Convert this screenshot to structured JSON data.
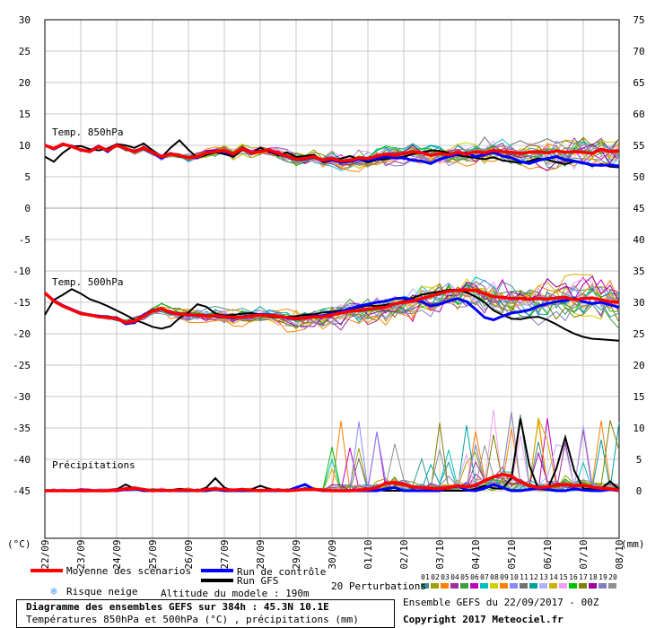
{
  "chart_data": {
    "type": "line",
    "title": "Diagramme des ensembles GEFS sur 384h : 45.3N 10.1E",
    "subtitle": "Températures 850hPa et 500hPa (°C) , précipitations (mm)",
    "left_axis": {
      "label": "(°C)",
      "range": [
        -45,
        30
      ],
      "ticks": [
        30,
        25,
        20,
        15,
        10,
        5,
        0,
        -5,
        -10,
        -15,
        -20,
        -25,
        -30,
        -35,
        -40,
        -45
      ]
    },
    "right_axis": {
      "label": "(mm)",
      "range": [
        0,
        75
      ],
      "ticks": [
        75,
        70,
        65,
        60,
        55,
        50,
        45,
        40,
        35,
        30,
        25,
        20,
        15,
        10,
        5,
        0
      ]
    },
    "x_ticks": [
      "22/09",
      "23/09",
      "24/09",
      "25/09",
      "26/09",
      "27/09",
      "28/09",
      "29/09",
      "30/09",
      "01/10",
      "02/10",
      "03/10",
      "04/10",
      "05/10",
      "06/10",
      "07/10",
      "08/10"
    ],
    "grid": true,
    "panels": [
      {
        "name": "Temp. 850hPa",
        "mean": [
          10,
          9.5,
          10.2,
          9.8,
          9.3,
          9.0,
          9.8,
          9.2,
          10.0,
          9.5,
          9.0,
          9.6,
          8.9,
          8.2,
          8.6,
          8.4,
          8.0,
          8.2,
          8.8,
          9.0,
          9.2,
          8.6,
          9.5,
          8.8,
          9.0,
          9.3,
          8.7,
          8.3,
          7.8,
          7.9,
          8.2,
          7.6,
          7.9,
          7.5,
          7.6,
          8.0,
          7.9,
          8.3,
          8.6,
          8.4,
          8.7,
          9.0,
          8.8,
          8.4,
          8.7,
          8.5,
          8.9,
          8.6,
          9.0,
          8.8,
          9.2,
          9.0,
          8.9,
          8.7,
          8.9,
          9.0,
          8.8,
          9.1,
          8.9,
          9.0,
          8.9,
          8.7,
          9.4,
          9.0,
          9.1
        ],
        "control": [
          10,
          9.4,
          10.1,
          9.9,
          9.2,
          9.1,
          9.9,
          9.0,
          10.1,
          9.4,
          9.1,
          9.5,
          8.8,
          8.0,
          8.7,
          8.3,
          8.1,
          8.0,
          8.9,
          9.1,
          9.0,
          8.5,
          9.6,
          8.7,
          9.1,
          9.2,
          8.6,
          8.2,
          7.7,
          7.8,
          8.1,
          7.5,
          7.7,
          7.3,
          7.4,
          7.8,
          7.6,
          7.9,
          8.2,
          8.0,
          8.0,
          7.6,
          7.5,
          7.1,
          7.8,
          8.2,
          8.6,
          8.8,
          8.2,
          8.5,
          8.9,
          8.3,
          8.0,
          7.4,
          7.1,
          7.6,
          7.9,
          8.2,
          7.7,
          7.5,
          7.2,
          6.9,
          6.8,
          6.9,
          6.7
        ],
        "gfs": [
          8.2,
          7.4,
          8.8,
          9.8,
          9.9,
          9.4,
          9.2,
          9.5,
          10.2,
          10.0,
          9.6,
          10.3,
          9.2,
          8.1,
          9.6,
          10.8,
          9.3,
          8.0,
          8.5,
          8.9,
          8.6,
          8.2,
          9.3,
          8.7,
          9.6,
          9.0,
          8.4,
          8.9,
          8.1,
          8.3,
          8.5,
          7.3,
          7.6,
          7.9,
          8.3,
          7.8,
          7.3,
          7.7,
          7.8,
          8.0,
          8.2,
          8.6,
          8.9,
          9.2,
          9.1,
          8.8,
          8.4,
          8.2,
          8.0,
          7.8,
          8.1,
          7.6,
          7.4,
          7.2,
          7.5,
          7.9,
          7.7,
          7.3,
          7.0,
          7.4,
          7.2,
          6.7,
          7.0,
          6.6,
          6.5
        ]
      },
      {
        "name": "Temp. 500hPa",
        "mean": [
          -13.5,
          -14.8,
          -15.6,
          -16.2,
          -16.8,
          -17.0,
          -17.3,
          -17.4,
          -17.6,
          -18.2,
          -18.0,
          -17.2,
          -16.4,
          -16.0,
          -16.6,
          -16.9,
          -17.0,
          -17.0,
          -17.2,
          -17.1,
          -17.3,
          -17.4,
          -17.4,
          -17.2,
          -17.0,
          -17.1,
          -17.2,
          -17.4,
          -17.6,
          -17.5,
          -17.3,
          -17.3,
          -17.0,
          -16.7,
          -16.4,
          -16.3,
          -16.1,
          -15.9,
          -15.8,
          -15.2,
          -15.0,
          -14.8,
          -14.4,
          -14.0,
          -13.6,
          -13.2,
          -13.1,
          -13.0,
          -13.1,
          -13.6,
          -14.1,
          -14.2,
          -14.4,
          -14.4,
          -14.5,
          -14.4,
          -14.5,
          -14.3,
          -14.2,
          -14.6,
          -14.4,
          -14.3,
          -14.6,
          -14.9,
          -15.0
        ],
        "control": [
          -13.5,
          -14.7,
          -15.5,
          -16.1,
          -16.7,
          -17.0,
          -17.2,
          -17.3,
          -17.5,
          -18.4,
          -18.2,
          -17.0,
          -16.3,
          -16.0,
          -16.7,
          -16.8,
          -17.1,
          -17.0,
          -17.1,
          -17.2,
          -17.4,
          -17.5,
          -17.3,
          -17.1,
          -16.9,
          -17.0,
          -17.2,
          -17.5,
          -17.7,
          -17.4,
          -17.2,
          -17.1,
          -16.8,
          -16.5,
          -16.0,
          -15.6,
          -15.3,
          -15.0,
          -14.8,
          -14.4,
          -14.3,
          -14.6,
          -14.9,
          -15.6,
          -15.3,
          -14.8,
          -14.4,
          -14.9,
          -16.1,
          -17.4,
          -17.8,
          -17.2,
          -16.7,
          -16.5,
          -16.2,
          -15.6,
          -15.2,
          -14.9,
          -14.7,
          -14.4,
          -14.9,
          -15.2,
          -15.0,
          -15.4,
          -15.8
        ],
        "gfs": [
          -17.0,
          -14.6,
          -13.8,
          -12.9,
          -13.6,
          -14.5,
          -15.0,
          -15.6,
          -16.3,
          -17.0,
          -17.8,
          -18.3,
          -18.9,
          -19.2,
          -18.8,
          -17.5,
          -16.6,
          -15.3,
          -15.7,
          -16.8,
          -17.1,
          -17.0,
          -16.8,
          -16.7,
          -16.9,
          -17.3,
          -17.4,
          -17.3,
          -17.2,
          -17.0,
          -16.9,
          -16.6,
          -16.5,
          -16.3,
          -16.1,
          -15.8,
          -15.5,
          -15.6,
          -15.4,
          -15.2,
          -14.8,
          -14.3,
          -13.8,
          -13.5,
          -13.3,
          -13.0,
          -13.0,
          -13.4,
          -14.1,
          -15.0,
          -16.3,
          -17.0,
          -17.6,
          -17.7,
          -17.4,
          -17.3,
          -17.8,
          -18.5,
          -19.3,
          -20.0,
          -20.5,
          -20.8,
          -20.9,
          -21.0,
          -21.1
        ]
      },
      {
        "name": "Précipitations",
        "unit": "mm",
        "mean": [
          0,
          0,
          0,
          0,
          0,
          0,
          0,
          0,
          0.1,
          0.3,
          0.4,
          0.2,
          0,
          0.1,
          0,
          0.1,
          0.1,
          0,
          0.2,
          0.3,
          0.2,
          0.1,
          0.2,
          0.1,
          0,
          0.1,
          0.1,
          0,
          0.1,
          0.2,
          0.2,
          0.1,
          0,
          0,
          0,
          0.1,
          0.2,
          0.5,
          1.2,
          1.3,
          1.0,
          0.6,
          0.5,
          0.4,
          0.3,
          0.5,
          0.8,
          0.6,
          0.9,
          1.6,
          2.2,
          2.6,
          2.3,
          1.4,
          0.8,
          0.5,
          0.6,
          0.9,
          1.0,
          0.8,
          0.9,
          0.6,
          0.4,
          0.3,
          0.1
        ],
        "control": [
          0,
          0,
          0,
          0,
          0,
          0,
          0,
          0,
          0,
          0.2,
          0.3,
          0,
          0,
          0,
          0,
          0,
          0,
          0,
          0,
          0.2,
          0,
          0,
          0,
          0,
          0,
          0,
          0,
          0,
          0.5,
          1.0,
          0.2,
          0,
          0,
          0,
          0,
          0,
          0,
          0,
          0.3,
          0.5,
          0,
          0,
          0,
          0,
          0,
          0.5,
          0.8,
          0.1,
          0,
          0.4,
          1.0,
          0.5,
          0,
          0,
          0.2,
          0.4,
          0.2,
          0,
          0,
          0.3,
          0.1,
          0,
          0,
          0.2,
          0
        ],
        "gfs": [
          0,
          0,
          0,
          0,
          0,
          0,
          0,
          0,
          0.2,
          1.0,
          0.3,
          0,
          0,
          0,
          0.1,
          0.3,
          0.2,
          0,
          0.5,
          2.0,
          0.5,
          0,
          0,
          0.2,
          0.8,
          0.3,
          0,
          0,
          0.1,
          0.4,
          0.2,
          0,
          0,
          0,
          0,
          0,
          0,
          0.1,
          0,
          0,
          0,
          0,
          0,
          0,
          0,
          0,
          0,
          0,
          0.3,
          0.8,
          0.4,
          0.3,
          2.0,
          11.5,
          4.0,
          0.3,
          0.2,
          3.5,
          8.5,
          3.2,
          0.4,
          0.2,
          0.3,
          1.5,
          0.2
        ]
      }
    ],
    "perturbations": {
      "count": 20,
      "labels": [
        "01",
        "02",
        "03",
        "04",
        "05",
        "06",
        "07",
        "08",
        "09",
        "10",
        "11",
        "12",
        "13",
        "14",
        "15",
        "16",
        "17",
        "18",
        "19",
        "20"
      ]
    }
  },
  "colors": {
    "mean": "#ff0000",
    "control": "#0000ff",
    "gfs": "#000000",
    "perturbations": [
      "#3e8e8e",
      "#a0a000",
      "#ff7f00",
      "#9b2f9b",
      "#38a038",
      "#c000c0",
      "#00c0c0",
      "#d0d000",
      "#ff8000",
      "#8888ff",
      "#707070",
      "#00a0a0",
      "#b0b0ff",
      "#d0b000",
      "#f0a0f0",
      "#00c000",
      "#808000",
      "#a000a0",
      "#8080c0",
      "#909090"
    ]
  },
  "legend": {
    "mean": "Moyenne des scénarios",
    "control": "Run de contrôle",
    "gfs": "Run GFS",
    "snow": "Risque neige",
    "altitude": "Altitude du modele : 190m",
    "perturbations": "20 Perturbations",
    "run_info": "Ensemble GEFS du 22/09/2017 - 00Z",
    "copyright": "Copyright 2017 Meteociel.fr"
  }
}
